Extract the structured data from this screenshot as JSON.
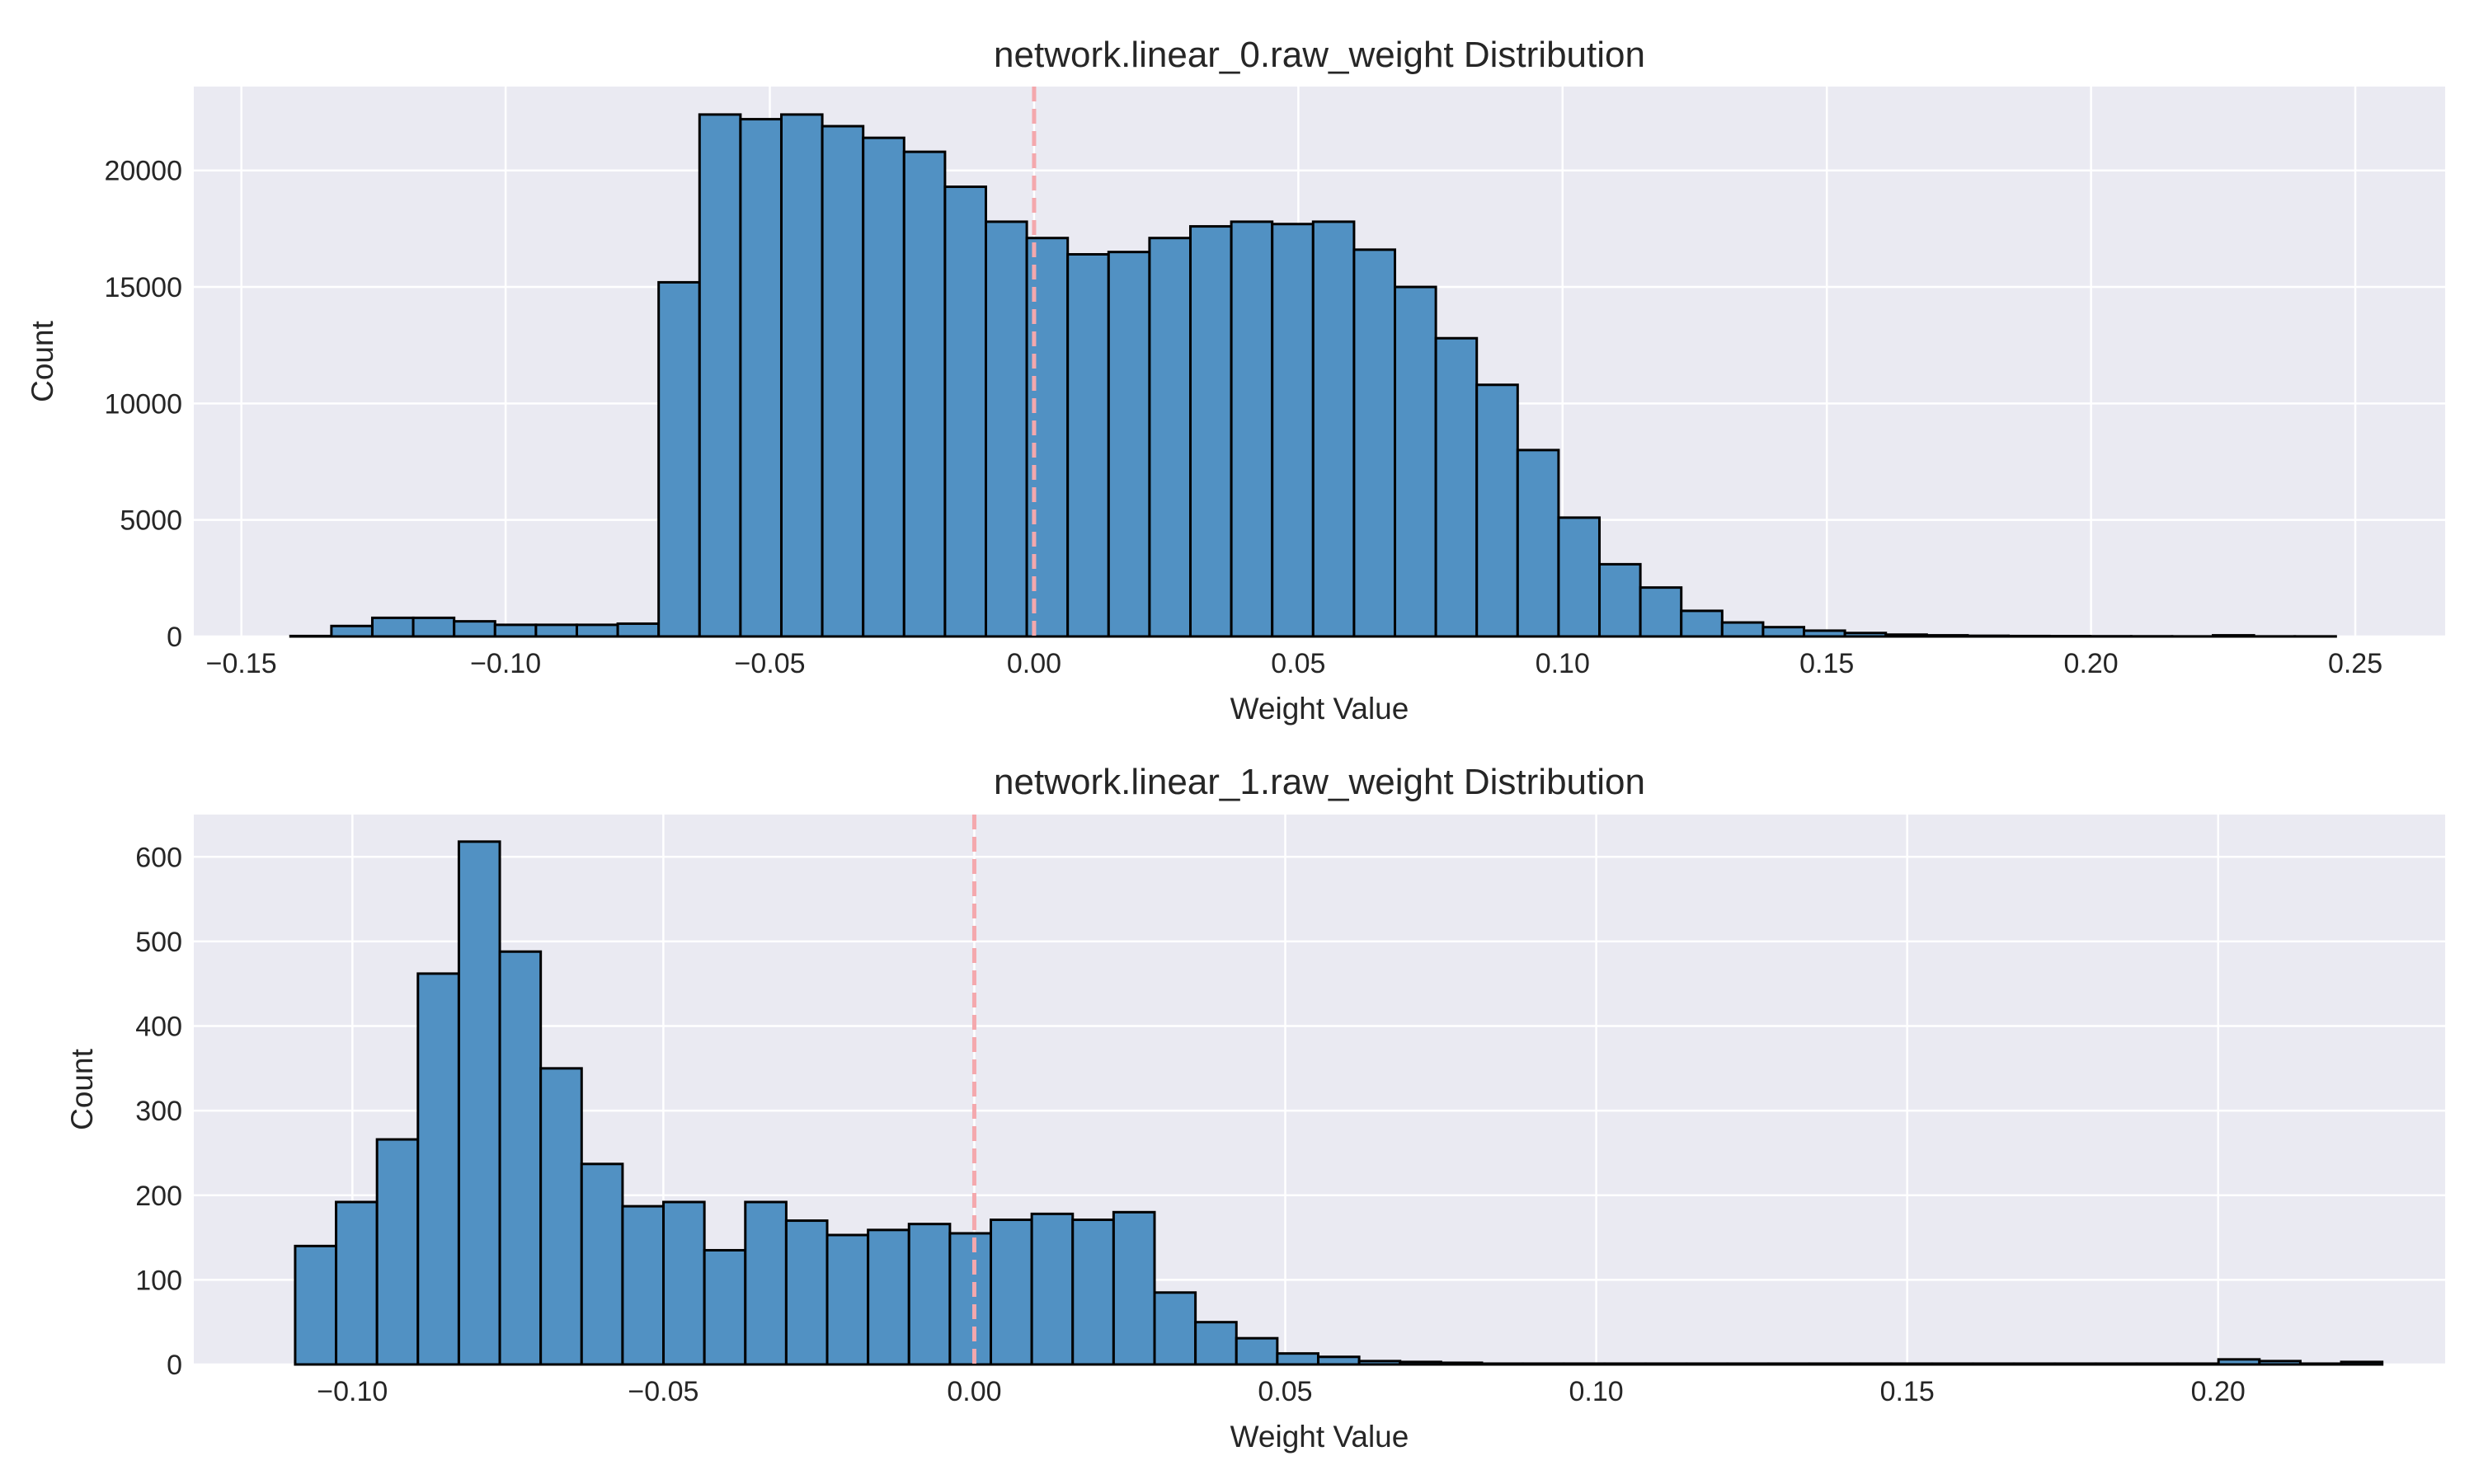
{
  "colors": {
    "axes_background": "#eaeaf2",
    "grid": "#ffffff",
    "bar_fill": "#5191c3",
    "bar_edge": "#000000",
    "zero_line": "#f4a8ad"
  },
  "chart_data": [
    {
      "type": "bar",
      "title": "network.linear_0.raw_weight Distribution",
      "xlabel": "Weight Value",
      "ylabel": "Count",
      "xlim": [
        -0.159,
        0.267
      ],
      "ylim": [
        0,
        23600
      ],
      "xticks": [
        -0.15,
        -0.1,
        -0.05,
        0.0,
        0.05,
        0.1,
        0.15,
        0.2,
        0.25
      ],
      "xtick_labels": [
        "−0.15",
        "−0.10",
        "−0.05",
        "0.00",
        "0.05",
        "0.10",
        "0.15",
        "0.20",
        "0.25"
      ],
      "yticks": [
        0,
        5000,
        10000,
        15000,
        20000
      ],
      "ytick_labels": [
        "0",
        "5000",
        "10000",
        "15000",
        "20000"
      ],
      "grid": true,
      "zero_line": 0.0,
      "bin_start": -0.1407,
      "bin_width": 0.00774,
      "values": [
        20,
        450,
        800,
        800,
        650,
        500,
        500,
        500,
        550,
        15200,
        22400,
        22200,
        22400,
        21900,
        21400,
        20800,
        19300,
        17800,
        17100,
        16400,
        16500,
        17100,
        17600,
        17800,
        17700,
        17800,
        16600,
        15000,
        12800,
        10800,
        8000,
        5100,
        3100,
        2100,
        1100,
        600,
        400,
        250,
        150,
        80,
        50,
        30,
        20,
        15,
        10,
        8,
        5,
        50,
        5,
        5
      ]
    },
    {
      "type": "bar",
      "title": "network.linear_1.raw_weight Distribution",
      "xlabel": "Weight Value",
      "ylabel": "Count",
      "xlim": [
        -0.1255,
        0.2365
      ],
      "ylim": [
        0,
        650
      ],
      "xticks": [
        -0.1,
        -0.05,
        0.0,
        0.05,
        0.1,
        0.15,
        0.2
      ],
      "xtick_labels": [
        "−0.10",
        "−0.05",
        "0.00",
        "0.05",
        "0.10",
        "0.15",
        "0.20"
      ],
      "yticks": [
        0,
        100,
        200,
        300,
        400,
        500,
        600
      ],
      "ytick_labels": [
        "0",
        "100",
        "200",
        "300",
        "400",
        "500",
        "600"
      ],
      "grid": true,
      "zero_line": 0.0,
      "bin_start": -0.1092,
      "bin_width": 0.00658,
      "values": [
        140,
        192,
        266,
        462,
        618,
        488,
        350,
        237,
        187,
        192,
        135,
        192,
        170,
        153,
        159,
        166,
        155,
        171,
        178,
        171,
        180,
        85,
        50,
        31,
        13,
        9,
        4,
        3,
        2,
        1,
        1,
        1,
        1,
        1,
        1,
        1,
        1,
        1,
        1,
        1,
        1,
        1,
        1,
        1,
        1,
        1,
        1,
        6,
        4,
        1,
        3
      ]
    }
  ]
}
